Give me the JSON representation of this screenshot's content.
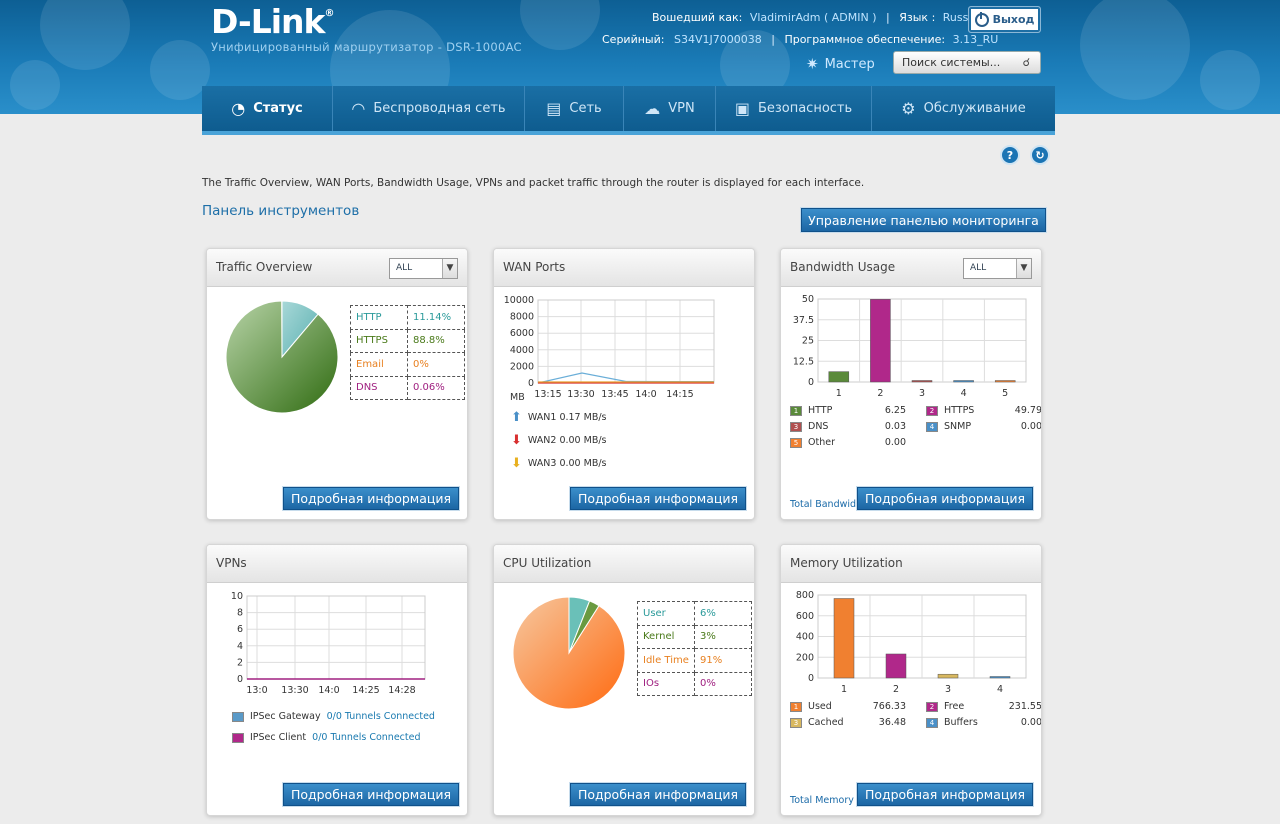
{
  "header": {
    "logo": "D-Link",
    "subtitle": "Унифицированный маршрутизатор - DSR-1000AC",
    "logged_label": "Вошедший как:",
    "user": "VladimirAdm ( ADMIN )",
    "lang_label": "Язык :",
    "lang": "Russian",
    "logout": "Выход",
    "serial_label": "Серийный:",
    "serial": "S34V1J7000038",
    "firmware_label": "Программное обеспечение:",
    "firmware": "3.13_RU",
    "wizard": "Мастер",
    "search_placeholder": "Поиск системы..."
  },
  "nav": [
    {
      "label": "Статус",
      "icon": "gauge-icon"
    },
    {
      "label": "Беспроводная сеть",
      "icon": "wifi-icon"
    },
    {
      "label": "Сеть",
      "icon": "computer-icon"
    },
    {
      "label": "VPN",
      "icon": "cloud-lock-icon"
    },
    {
      "label": "Безопасность",
      "icon": "lock-icon"
    },
    {
      "label": "Обслуживание",
      "icon": "gears-icon"
    }
  ],
  "description": "The Traffic Overview, WAN Ports, Bandwidth Usage, VPNs and packet traffic through the router is displayed for each interface.",
  "dashboard_title": "Панель инструментов",
  "manage_button": "Управление панелью мониторинга",
  "detail_button": "Подробная информация",
  "panels": {
    "traffic": {
      "title": "Traffic Overview",
      "filter": "ALL",
      "rows": [
        {
          "label": "HTTP",
          "value": "11.14%",
          "color": "#2a9a9a"
        },
        {
          "label": "HTTPS",
          "value": "88.8%",
          "color": "#4a7a1a"
        },
        {
          "label": "Email",
          "value": "0%",
          "color": "#e88020"
        },
        {
          "label": "DNS",
          "value": "0.06%",
          "color": "#a02080"
        }
      ]
    },
    "wan": {
      "title": "WAN Ports",
      "yticks": [
        "10000",
        "8000",
        "6000",
        "4000",
        "2000",
        "0"
      ],
      "unit": "MB",
      "xticks": [
        "13:15",
        "13:30",
        "13:45",
        "14:0",
        "14:15"
      ],
      "wans": [
        {
          "label": "WAN1 0.17 MB/s",
          "color": "#4a90c8"
        },
        {
          "label": "WAN2 0.00 MB/s",
          "color": "#d83030"
        },
        {
          "label": "WAN3 0.00 MB/s",
          "color": "#e8b020"
        }
      ]
    },
    "bandwidth": {
      "title": "Bandwidth Usage",
      "filter": "ALL",
      "yticks": [
        "50",
        "37.5",
        "25",
        "12.5",
        "0"
      ],
      "xticks": [
        "1",
        "2",
        "3",
        "4",
        "5"
      ],
      "legend": [
        {
          "num": "1",
          "label": "HTTP",
          "value": "6.25",
          "color": "#5a8a3a"
        },
        {
          "num": "2",
          "label": "HTTPS",
          "value": "49.79",
          "color": "#b0288a"
        },
        {
          "num": "3",
          "label": "DNS",
          "value": "0.03",
          "color": "#b05050"
        },
        {
          "num": "4",
          "label": "SNMP",
          "value": "0.00",
          "color": "#4a90c8"
        },
        {
          "num": "5",
          "label": "Other",
          "value": "0.00",
          "color": "#f08030"
        }
      ],
      "footer": "Total Bandwid"
    },
    "vpns": {
      "title": "VPNs",
      "yticks": [
        "10",
        "8",
        "6",
        "4",
        "2",
        "0"
      ],
      "xticks": [
        "13:0",
        "13:30",
        "14:0",
        "14:25",
        "14:28"
      ],
      "rows": [
        {
          "label": "IPSec Gateway",
          "link": "0/0 Tunnels Connected",
          "color": "#5a9ac8"
        },
        {
          "label": "IPSec Client",
          "link": "0/0 Tunnels Connected",
          "color": "#b0288a"
        }
      ]
    },
    "cpu": {
      "title": "CPU Utilization",
      "rows": [
        {
          "label": "User",
          "value": "6%",
          "color": "#2a9a9a"
        },
        {
          "label": "Kernel",
          "value": "3%",
          "color": "#4a7a1a"
        },
        {
          "label": "Idle Time",
          "value": "91%",
          "color": "#e88020"
        },
        {
          "label": "IOs",
          "value": "0%",
          "color": "#a02080"
        }
      ]
    },
    "memory": {
      "title": "Memory Utilization",
      "yticks": [
        "800",
        "600",
        "400",
        "200",
        "0"
      ],
      "xticks": [
        "1",
        "2",
        "3",
        "4"
      ],
      "legend": [
        {
          "num": "1",
          "label": "Used",
          "value": "766.33",
          "color": "#f08030"
        },
        {
          "num": "2",
          "label": "Free",
          "value": "231.55",
          "color": "#b0288a"
        },
        {
          "num": "3",
          "label": "Cached",
          "value": "36.48",
          "color": "#d8b860"
        },
        {
          "num": "4",
          "label": "Buffers",
          "value": "0.00",
          "color": "#4a90c8"
        }
      ],
      "footer": "Total Memory"
    }
  },
  "chart_data": [
    {
      "type": "pie",
      "categories": [
        "HTTP",
        "HTTPS",
        "Email",
        "DNS"
      ],
      "values": [
        11.14,
        88.8,
        0,
        0.06
      ]
    },
    {
      "type": "line",
      "x": [
        "13:15",
        "13:30",
        "13:45",
        "14:0",
        "14:15"
      ],
      "ylabel": "MB",
      "ylim": [
        0,
        10000
      ],
      "series": [
        {
          "name": "WAN1",
          "values": [
            0,
            1200,
            180,
            170,
            170
          ]
        },
        {
          "name": "WAN2",
          "values": [
            0,
            0,
            0,
            0,
            0
          ]
        },
        {
          "name": "WAN3",
          "values": [
            120,
            120,
            120,
            120,
            120
          ]
        }
      ]
    },
    {
      "type": "bar",
      "categories": [
        "1",
        "2",
        "3",
        "4",
        "5"
      ],
      "values": [
        6.25,
        49.79,
        0.03,
        0.0,
        0.0
      ],
      "ylim": [
        0,
        50
      ]
    },
    {
      "type": "line",
      "x": [
        "13:0",
        "13:30",
        "14:0",
        "14:25",
        "14:28"
      ],
      "ylim": [
        0,
        10
      ],
      "series": [
        {
          "name": "IPSec Client",
          "values": [
            0,
            0,
            0,
            0,
            0
          ]
        }
      ]
    },
    {
      "type": "pie",
      "categories": [
        "User",
        "Kernel",
        "Idle Time",
        "IOs"
      ],
      "values": [
        6,
        3,
        91,
        0
      ]
    },
    {
      "type": "bar",
      "categories": [
        "1",
        "2",
        "3",
        "4"
      ],
      "values": [
        766.33,
        231.55,
        36.48,
        0.0
      ],
      "ylim": [
        0,
        800
      ]
    }
  ]
}
